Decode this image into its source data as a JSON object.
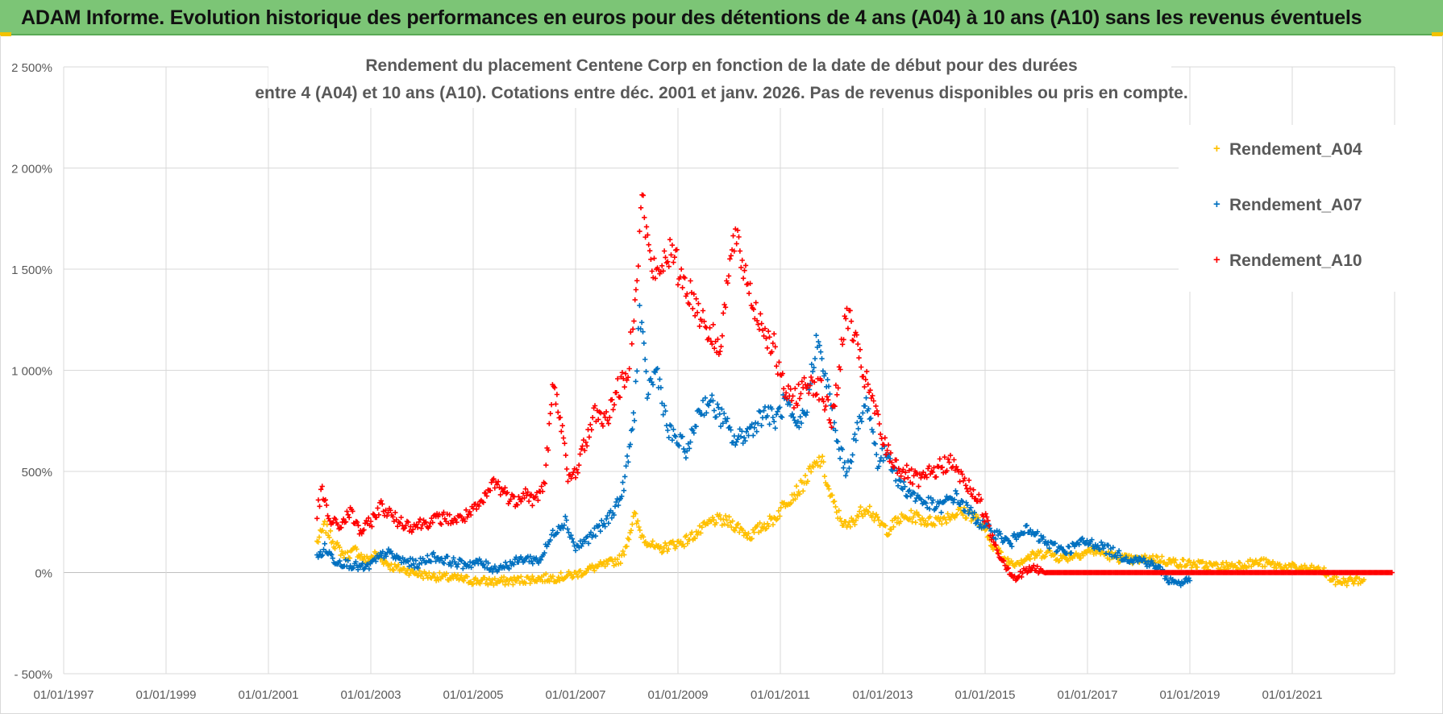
{
  "header": {
    "title": "ADAM Informe. Evolution historique des performances en euros pour des détentions de 4 ans (A04) à 10 ans (A10) sans les revenus éventuels"
  },
  "colors": {
    "banner": "#7cc576",
    "A04": "#ffc000",
    "A07": "#0070c0",
    "A10": "#ff0000",
    "grid": "#d9d9d9",
    "axis_text": "#595959"
  },
  "chart_data": {
    "type": "scatter",
    "title_lines": [
      "Rendement du placement Centene Corp en fonction de la date de début pour des durées",
      "entre 4 (A04) et 10 ans (A10).  Cotations entre déc. 2001 et janv. 2026. Pas de revenus disponibles ou pris en compte."
    ],
    "xlabel": "",
    "ylabel": "",
    "xlim": [
      "1997-01-01",
      "2023-01-01"
    ],
    "ylim": [
      -500,
      2500
    ],
    "x_tick_labels": [
      "01/01/1997",
      "01/01/1999",
      "01/01/2001",
      "01/01/2003",
      "01/01/2005",
      "01/01/2007",
      "01/01/2009",
      "01/01/2011",
      "01/01/2013",
      "01/01/2015",
      "01/01/2017",
      "01/01/2019",
      "01/01/2021"
    ],
    "y_tick_values": [
      -500,
      0,
      500,
      1000,
      1500,
      2000,
      2500
    ],
    "y_tick_labels": [
      "- 500%",
      "0%",
      "500%",
      "1 000%",
      "1 500%",
      "2 000%",
      "2 500%"
    ],
    "grid": true,
    "legend_position": "right",
    "marker": "+",
    "series": [
      {
        "name": "Rendement_A04",
        "color": "#ffc000",
        "points": [
          [
            2001.95,
            150
          ],
          [
            2002.1,
            230
          ],
          [
            2002.3,
            140
          ],
          [
            2002.5,
            80
          ],
          [
            2002.7,
            110
          ],
          [
            2002.9,
            60
          ],
          [
            2003.1,
            90
          ],
          [
            2003.4,
            30
          ],
          [
            2003.7,
            10
          ],
          [
            2004.0,
            -10
          ],
          [
            2004.3,
            -20
          ],
          [
            2004.7,
            -30
          ],
          [
            2005.0,
            -40
          ],
          [
            2005.4,
            -45
          ],
          [
            2005.8,
            -40
          ],
          [
            2006.2,
            -30
          ],
          [
            2006.6,
            -25
          ],
          [
            2007.0,
            -10
          ],
          [
            2007.3,
            20
          ],
          [
            2007.6,
            40
          ],
          [
            2007.9,
            70
          ],
          [
            2008.0,
            150
          ],
          [
            2008.15,
            280
          ],
          [
            2008.3,
            180
          ],
          [
            2008.6,
            110
          ],
          [
            2008.9,
            140
          ],
          [
            2009.1,
            150
          ],
          [
            2009.4,
            200
          ],
          [
            2009.7,
            260
          ],
          [
            2010.0,
            250
          ],
          [
            2010.2,
            220
          ],
          [
            2010.4,
            180
          ],
          [
            2010.6,
            220
          ],
          [
            2010.9,
            270
          ],
          [
            2011.1,
            350
          ],
          [
            2011.4,
            420
          ],
          [
            2011.6,
            500
          ],
          [
            2011.8,
            560
          ],
          [
            2011.95,
            400
          ],
          [
            2012.1,
            300
          ],
          [
            2012.3,
            220
          ],
          [
            2012.5,
            280
          ],
          [
            2012.7,
            330
          ],
          [
            2012.9,
            250
          ],
          [
            2013.1,
            210
          ],
          [
            2013.3,
            260
          ],
          [
            2013.6,
            280
          ],
          [
            2013.9,
            250
          ],
          [
            2014.2,
            270
          ],
          [
            2014.5,
            300
          ],
          [
            2014.8,
            280
          ],
          [
            2015.0,
            200
          ],
          [
            2015.2,
            120
          ],
          [
            2015.4,
            60
          ],
          [
            2015.6,
            50
          ],
          [
            2015.9,
            80
          ],
          [
            2016.2,
            100
          ],
          [
            2016.5,
            70
          ],
          [
            2016.8,
            90
          ],
          [
            2017.1,
            110
          ],
          [
            2017.5,
            80
          ],
          [
            2017.9,
            60
          ],
          [
            2018.3,
            70
          ],
          [
            2018.7,
            50
          ],
          [
            2019.1,
            40
          ],
          [
            2019.6,
            30
          ],
          [
            2020.0,
            40
          ],
          [
            2020.4,
            50
          ],
          [
            2020.8,
            30
          ],
          [
            2021.2,
            20
          ],
          [
            2021.6,
            10
          ],
          [
            2021.8,
            -40
          ],
          [
            2022.0,
            -45
          ],
          [
            2022.2,
            -40
          ],
          [
            2022.4,
            -35
          ]
        ]
      },
      {
        "name": "Rendement_A07",
        "color": "#0070c0",
        "points": [
          [
            2001.95,
            70
          ],
          [
            2002.1,
            120
          ],
          [
            2002.3,
            60
          ],
          [
            2002.6,
            40
          ],
          [
            2002.9,
            20
          ],
          [
            2003.1,
            60
          ],
          [
            2003.3,
            100
          ],
          [
            2003.6,
            60
          ],
          [
            2003.9,
            40
          ],
          [
            2004.2,
            80
          ],
          [
            2004.5,
            60
          ],
          [
            2004.8,
            40
          ],
          [
            2005.1,
            50
          ],
          [
            2005.4,
            20
          ],
          [
            2005.7,
            40
          ],
          [
            2006.0,
            70
          ],
          [
            2006.3,
            60
          ],
          [
            2006.6,
            210
          ],
          [
            2006.8,
            260
          ],
          [
            2007.0,
            120
          ],
          [
            2007.3,
            180
          ],
          [
            2007.6,
            250
          ],
          [
            2007.9,
            380
          ],
          [
            2008.05,
            600
          ],
          [
            2008.15,
            800
          ],
          [
            2008.25,
            1300
          ],
          [
            2008.4,
            900
          ],
          [
            2008.6,
            1000
          ],
          [
            2008.8,
            700
          ],
          [
            2009.0,
            650
          ],
          [
            2009.2,
            600
          ],
          [
            2009.4,
            800
          ],
          [
            2009.6,
            850
          ],
          [
            2009.9,
            750
          ],
          [
            2010.1,
            650
          ],
          [
            2010.4,
            700
          ],
          [
            2010.7,
            800
          ],
          [
            2010.9,
            750
          ],
          [
            2011.1,
            850
          ],
          [
            2011.3,
            700
          ],
          [
            2011.5,
            800
          ],
          [
            2011.7,
            1150
          ],
          [
            2011.9,
            950
          ],
          [
            2012.1,
            650
          ],
          [
            2012.3,
            500
          ],
          [
            2012.5,
            700
          ],
          [
            2012.7,
            850
          ],
          [
            2012.9,
            550
          ],
          [
            2013.1,
            600
          ],
          [
            2013.3,
            450
          ],
          [
            2013.5,
            400
          ],
          [
            2013.8,
            350
          ],
          [
            2014.1,
            320
          ],
          [
            2014.4,
            380
          ],
          [
            2014.7,
            300
          ],
          [
            2015.0,
            220
          ],
          [
            2015.3,
            180
          ],
          [
            2015.5,
            140
          ],
          [
            2015.7,
            220
          ],
          [
            2016.0,
            180
          ],
          [
            2016.3,
            130
          ],
          [
            2016.6,
            110
          ],
          [
            2016.9,
            150
          ],
          [
            2017.2,
            140
          ],
          [
            2017.5,
            100
          ],
          [
            2017.8,
            70
          ],
          [
            2018.1,
            60
          ],
          [
            2018.4,
            20
          ],
          [
            2018.6,
            -40
          ],
          [
            2018.8,
            -50
          ],
          [
            2019.0,
            -40
          ]
        ]
      },
      {
        "name": "Rendement_A10",
        "color": "#ff0000",
        "points": [
          [
            2001.95,
            300
          ],
          [
            2002.05,
            400
          ],
          [
            2002.2,
            250
          ],
          [
            2002.4,
            230
          ],
          [
            2002.6,
            300
          ],
          [
            2002.8,
            200
          ],
          [
            2003.0,
            250
          ],
          [
            2003.2,
            330
          ],
          [
            2003.5,
            260
          ],
          [
            2003.8,
            230
          ],
          [
            2004.1,
            250
          ],
          [
            2004.4,
            270
          ],
          [
            2004.7,
            260
          ],
          [
            2005.0,
            300
          ],
          [
            2005.2,
            350
          ],
          [
            2005.4,
            450
          ],
          [
            2005.6,
            400
          ],
          [
            2005.8,
            350
          ],
          [
            2006.0,
            400
          ],
          [
            2006.2,
            350
          ],
          [
            2006.4,
            450
          ],
          [
            2006.55,
            900
          ],
          [
            2006.7,
            800
          ],
          [
            2006.85,
            450
          ],
          [
            2007.0,
            500
          ],
          [
            2007.2,
            650
          ],
          [
            2007.4,
            800
          ],
          [
            2007.6,
            750
          ],
          [
            2007.8,
            900
          ],
          [
            2008.0,
            950
          ],
          [
            2008.1,
            1200
          ],
          [
            2008.2,
            1500
          ],
          [
            2008.3,
            1850
          ],
          [
            2008.45,
            1550
          ],
          [
            2008.6,
            1450
          ],
          [
            2008.8,
            1600
          ],
          [
            2009.0,
            1500
          ],
          [
            2009.2,
            1400
          ],
          [
            2009.4,
            1300
          ],
          [
            2009.6,
            1200
          ],
          [
            2009.8,
            1100
          ],
          [
            2009.95,
            1400
          ],
          [
            2010.1,
            1650
          ],
          [
            2010.3,
            1500
          ],
          [
            2010.5,
            1300
          ],
          [
            2010.7,
            1200
          ],
          [
            2010.9,
            1100
          ],
          [
            2011.0,
            950
          ],
          [
            2011.2,
            850
          ],
          [
            2011.4,
            900
          ],
          [
            2011.6,
            950
          ],
          [
            2011.8,
            900
          ],
          [
            2012.0,
            750
          ],
          [
            2012.15,
            1000
          ],
          [
            2012.3,
            1300
          ],
          [
            2012.45,
            1150
          ],
          [
            2012.6,
            1000
          ],
          [
            2012.8,
            850
          ],
          [
            2013.0,
            650
          ],
          [
            2013.2,
            550
          ],
          [
            2013.4,
            500
          ],
          [
            2013.7,
            450
          ],
          [
            2014.0,
            500
          ],
          [
            2014.3,
            550
          ],
          [
            2014.6,
            450
          ],
          [
            2014.9,
            350
          ],
          [
            2015.1,
            200
          ],
          [
            2015.3,
            80
          ],
          [
            2015.5,
            0
          ],
          [
            2015.6,
            -30
          ],
          [
            2015.8,
            10
          ],
          [
            2015.95,
            20
          ],
          [
            2016.2,
            0
          ],
          [
            2017.0,
            0
          ],
          [
            2018.0,
            0
          ],
          [
            2019.0,
            0
          ],
          [
            2020.0,
            0
          ],
          [
            2021.0,
            0
          ],
          [
            2022.0,
            0
          ],
          [
            2022.95,
            0
          ]
        ]
      }
    ]
  }
}
